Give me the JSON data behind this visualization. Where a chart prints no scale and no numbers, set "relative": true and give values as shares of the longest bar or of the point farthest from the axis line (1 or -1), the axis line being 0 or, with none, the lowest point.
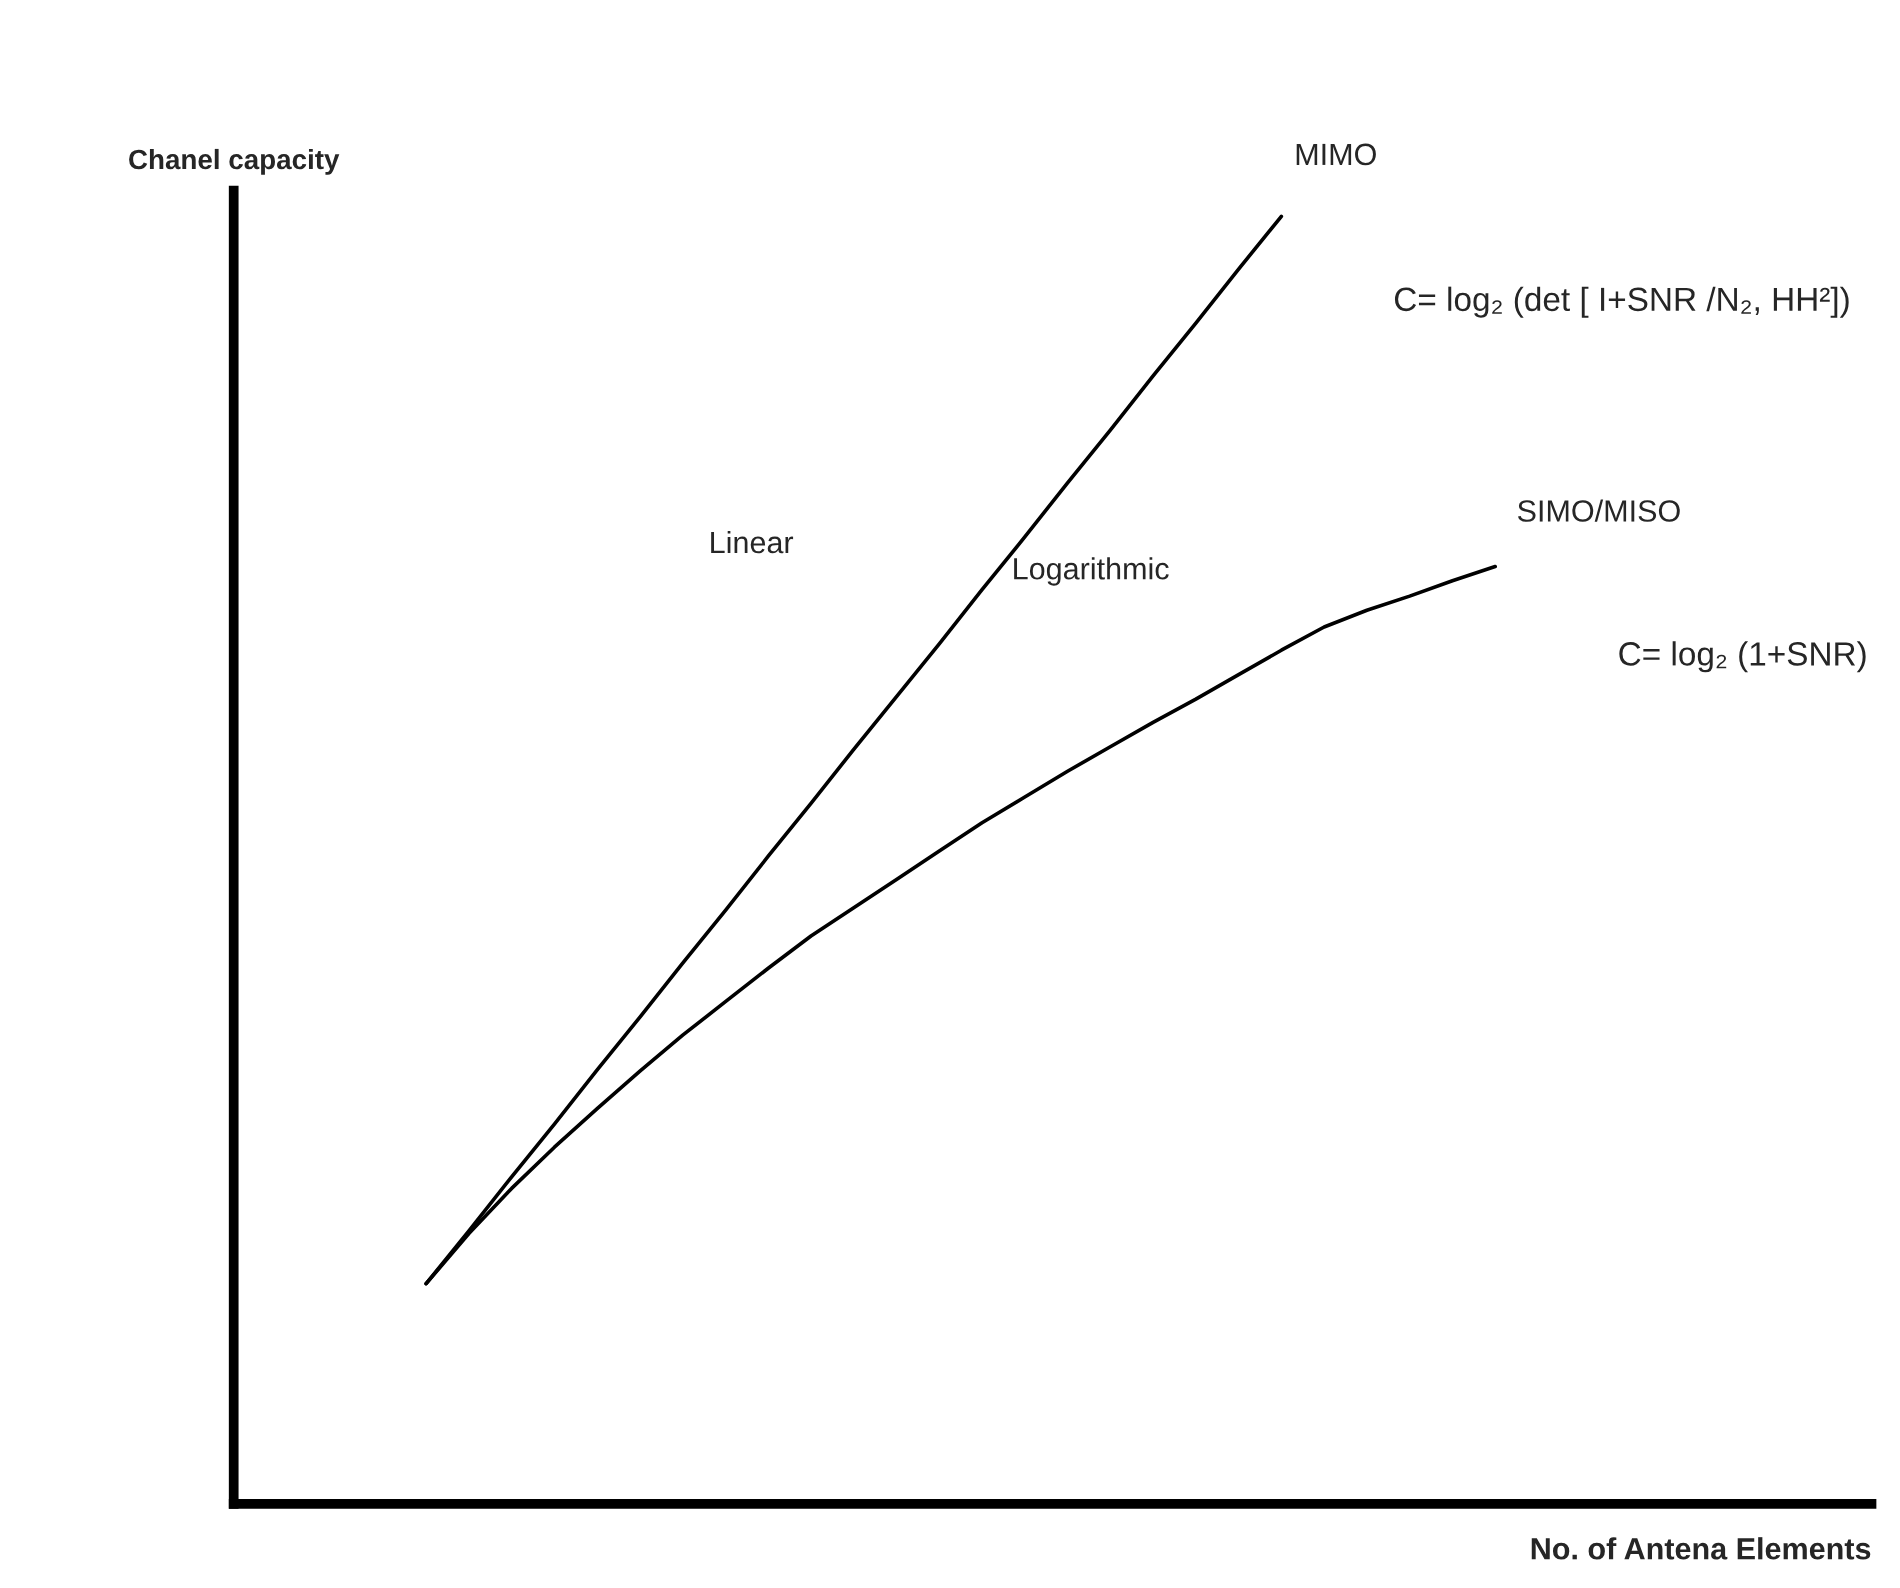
{
  "chart_data": {
    "type": "line",
    "relative": true,
    "tick_labels": false,
    "xlabel": "No. of Antena Elements",
    "ylabel": "Chanel capacity",
    "categories": [
      null,
      null,
      null,
      null,
      null,
      null,
      null,
      null,
      null,
      null,
      null,
      null,
      null,
      null,
      null,
      null,
      null,
      null,
      null,
      null,
      null,
      null,
      null,
      null,
      null,
      null
    ],
    "series": [
      {
        "name": "MIMO",
        "color": "#000000",
        "values": [
          0.171,
          0.212,
          0.254,
          0.295,
          0.337,
          0.378,
          0.42,
          0.461,
          0.503,
          0.544,
          0.586,
          0.627,
          0.668,
          0.71,
          0.751,
          0.793,
          0.834,
          0.876,
          0.917,
          0.959,
          1.0,
          null,
          null,
          null,
          null,
          null
        ]
      },
      {
        "name": "SIMO/MISO",
        "color": "#000000",
        "values": [
          0.171,
          0.21,
          0.245,
          0.277,
          0.307,
          0.336,
          0.364,
          0.39,
          0.416,
          0.441,
          0.463,
          0.485,
          0.507,
          0.529,
          0.549,
          0.569,
          0.588,
          0.607,
          0.625,
          0.644,
          0.663,
          0.681,
          0.694,
          0.705,
          0.717,
          0.728
        ]
      }
    ],
    "annotations": [
      "Linear",
      "Logarithmic",
      "C= log₂ (det [ I+SNR /N₂, HH²])",
      "C= log₂ (1+SNR)"
    ]
  }
}
